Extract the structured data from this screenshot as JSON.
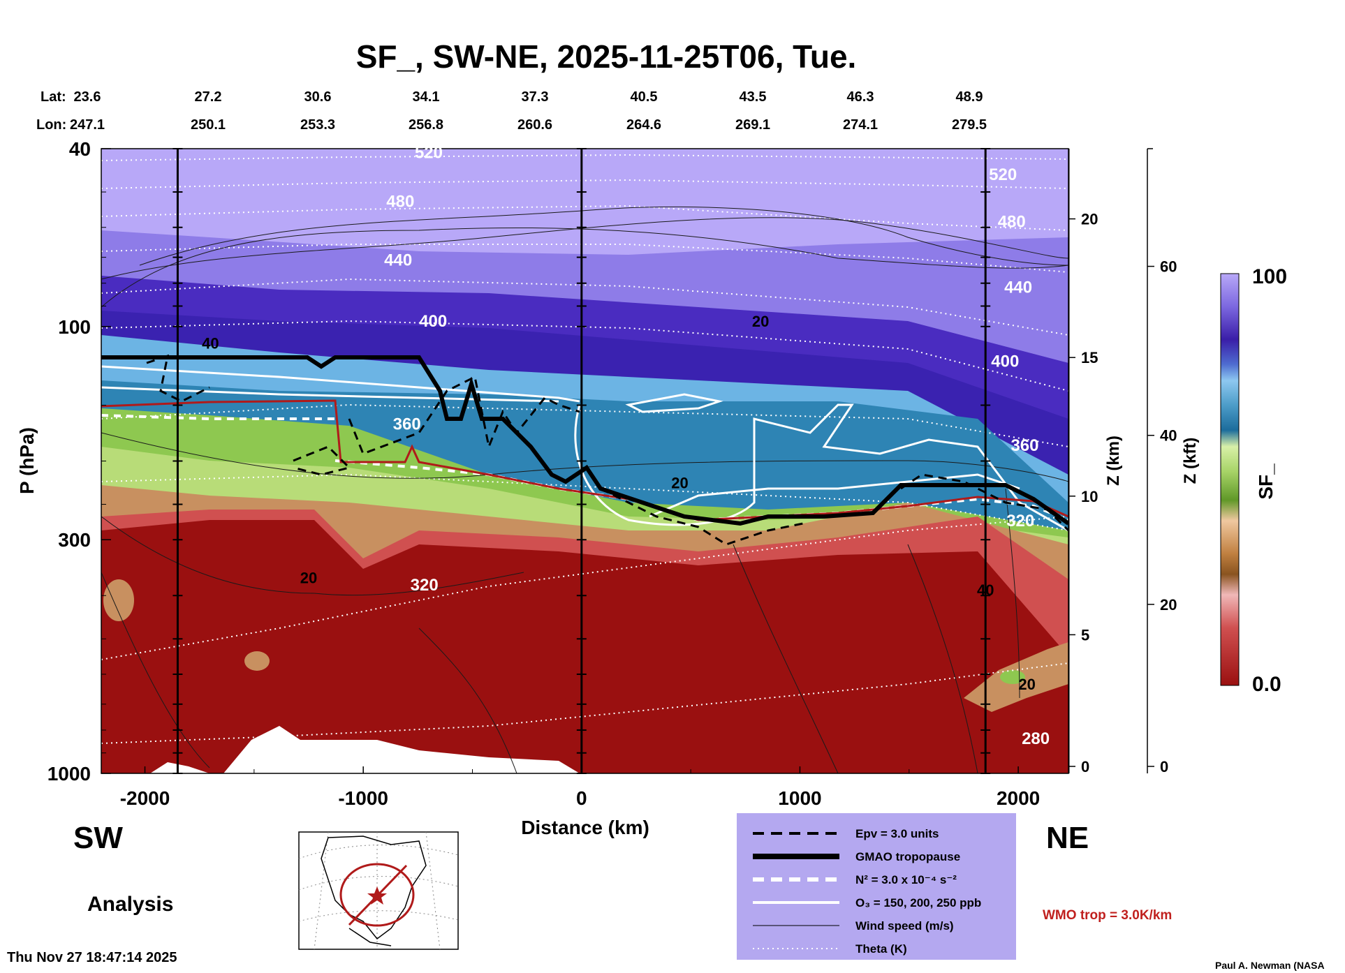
{
  "title": "SF_, SW-NE, 2025-11-25T06, Tue.",
  "geo": {
    "lat_label": "Lat:",
    "lon_label": "Lon:",
    "lat": [
      "23.6",
      "27.2",
      "30.6",
      "34.1",
      "37.3",
      "40.5",
      "43.5",
      "46.3",
      "48.9"
    ],
    "lon": [
      "247.1",
      "250.1",
      "253.3",
      "256.8",
      "260.6",
      "264.6",
      "269.1",
      "274.1",
      "279.5"
    ]
  },
  "direction": {
    "left": "SW",
    "right": "NE"
  },
  "analysis_label": "Analysis",
  "timestamp": "Thu Nov 27 18:47:14 2025",
  "credit": "Paul A. Newman (NASA",
  "wmo_trop": "WMO trop = 3.0K/km",
  "colorbar": {
    "label": "SF_",
    "max": "100",
    "min": "0.0"
  },
  "legend": {
    "items": [
      {
        "label": "Epv = 3.0 units",
        "style": "black-dashed"
      },
      {
        "label": "GMAO tropopause",
        "style": "black-thick"
      },
      {
        "label": "N² = 3.0 x 10⁻⁴ s⁻²",
        "style": "white-dashed"
      },
      {
        "label": "O₃ = 150, 200, 250 ppb",
        "style": "white-solid"
      },
      {
        "label": "Wind speed (m/s)",
        "style": "black-thin"
      },
      {
        "label": "Theta (K)",
        "style": "white-dotted"
      }
    ]
  },
  "colors": {
    "legend_bg": "#b4a8f0",
    "wmo_trop": "#c0201e",
    "strat": "#b8a8f8",
    "dark_blue": "#3a1ea8",
    "teal": "#2e84b4",
    "green": "#8ec850",
    "tan": "#c89060",
    "red": "#9a1010"
  },
  "chart_data": {
    "type": "heatmap",
    "xlabel": "Distance (km)",
    "ylabel": "P (hPa)",
    "xlim": [
      -2200,
      2230
    ],
    "ylim": [
      1000,
      40
    ],
    "y_scale": "log",
    "x_ticks": [
      "-2000",
      "-1000",
      "0",
      "1000",
      "2000"
    ],
    "x_tick_values": [
      -2000,
      -1000,
      0,
      1000,
      2000
    ],
    "y_ticks": [
      "40",
      "100",
      "300",
      "1000"
    ],
    "y_tick_values": [
      40,
      100,
      300,
      1000
    ],
    "z_km_label": "Z (km)",
    "z_km_ticks": [
      "0",
      "5",
      "10",
      "15",
      "20"
    ],
    "z_km_values": [
      0,
      5,
      10,
      15,
      20
    ],
    "z_kft_label": "Z (kft)",
    "z_kft_ticks": [
      "0",
      "20",
      "40",
      "60"
    ],
    "z_kft_values": [
      0,
      20,
      40,
      60
    ],
    "vertical_lines_km": [
      -1850,
      0,
      1850
    ],
    "theta_labels": [
      {
        "text": "520",
        "x": -700,
        "p": 42
      },
      {
        "text": "480",
        "x": -830,
        "p": 54
      },
      {
        "text": "440",
        "x": -840,
        "p": 73
      },
      {
        "text": "400",
        "x": -680,
        "p": 100
      },
      {
        "text": "360",
        "x": -800,
        "p": 170
      },
      {
        "text": "320",
        "x": -720,
        "p": 390
      },
      {
        "text": "520",
        "x": 1930,
        "p": 47
      },
      {
        "text": "480",
        "x": 1970,
        "p": 60
      },
      {
        "text": "440",
        "x": 2000,
        "p": 84
      },
      {
        "text": "400",
        "x": 1940,
        "p": 123
      },
      {
        "text": "360",
        "x": 2030,
        "p": 190
      },
      {
        "text": "320",
        "x": 2010,
        "p": 280
      },
      {
        "text": "280",
        "x": 2080,
        "p": 860
      }
    ],
    "wind_labels": [
      {
        "text": "20",
        "x": 820,
        "p": 100
      },
      {
        "text": "20",
        "x": 450,
        "p": 230
      },
      {
        "text": "20",
        "x": -1250,
        "p": 375
      },
      {
        "text": "20",
        "x": 2040,
        "p": 650
      },
      {
        "text": "40",
        "x": 1850,
        "p": 400
      },
      {
        "text": "40",
        "x": -1700,
        "p": 112
      }
    ]
  }
}
